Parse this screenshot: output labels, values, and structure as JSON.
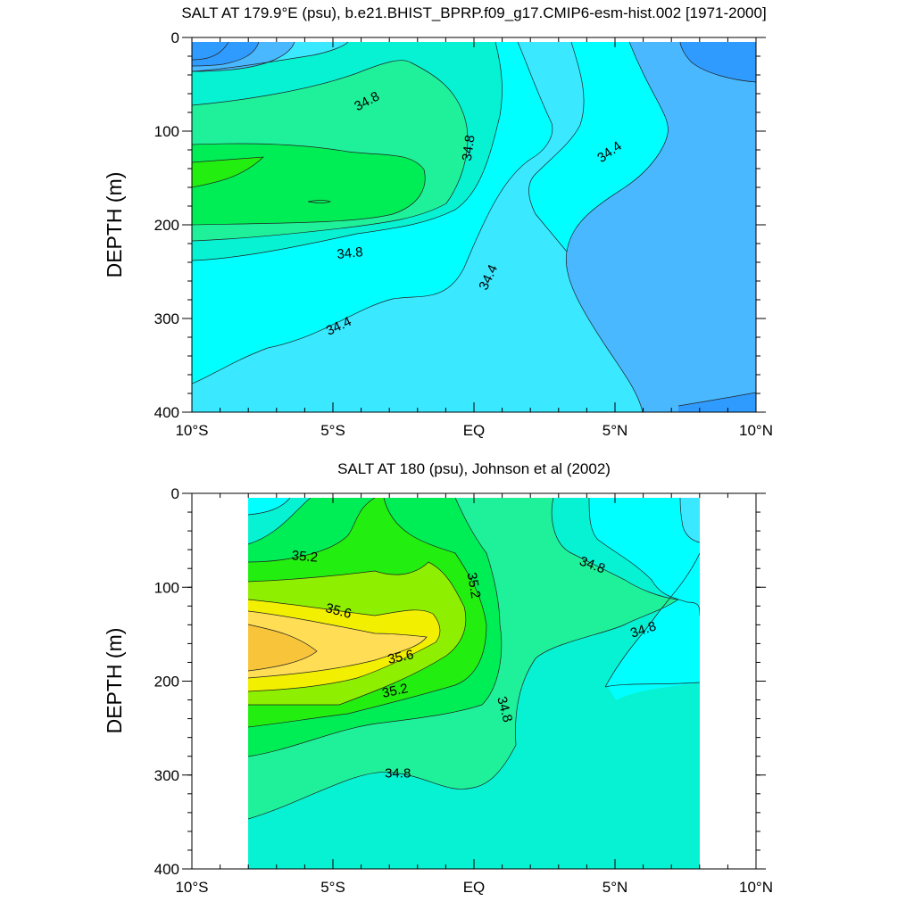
{
  "colors": {
    "s34_0": "#2f9bff",
    "s34_2": "#49b8ff",
    "s34_4": "#3ae8ff",
    "s34_6": "#00ffff",
    "s34_8": "#07f2d2",
    "s35_0": "#1ff19a",
    "s35_2": "#00ee55",
    "s35_4": "#22ee10",
    "s35_6": "#8ef000",
    "s35_8": "#f2f000",
    "s36_0": "#ffdd55",
    "s36_2": "#f8c43a",
    "line": "#222222",
    "axis": "#000000"
  },
  "chart_data": [
    {
      "type": "contour",
      "title": "SALT AT 179.9°E (psu), b.e21.BHIST_BPRP.f09_g17.CMIP6-esm-hist.002 [1971-2000]",
      "ylabel": "DEPTH (m)",
      "xlim": [
        -10,
        10
      ],
      "ylim": [
        400,
        0
      ],
      "x_ticks": [
        {
          "value": -10,
          "label": "10°S"
        },
        {
          "value": -5,
          "label": "5°S"
        },
        {
          "value": 0,
          "label": "EQ"
        },
        {
          "value": 5,
          "label": "5°N"
        },
        {
          "value": 10,
          "label": "10°N"
        }
      ],
      "y_ticks": [
        0,
        100,
        200,
        300,
        400
      ],
      "contour_labels": [
        {
          "text": "34.8",
          "lat": -3.8,
          "depth": 68,
          "angle": -28
        },
        {
          "text": "34.8",
          "lat": -0.2,
          "depth": 118,
          "angle": -82
        },
        {
          "text": "34.4",
          "lat": 4.8,
          "depth": 122,
          "angle": -35
        },
        {
          "text": "34.8",
          "lat": -4.4,
          "depth": 230,
          "angle": -6
        },
        {
          "text": "34.4",
          "lat": 0.5,
          "depth": 256,
          "angle": -65
        },
        {
          "text": "34.4",
          "lat": -4.8,
          "depth": 308,
          "angle": -25
        }
      ]
    },
    {
      "type": "contour",
      "title": "SALT AT 180 (psu), Johnson et al (2002)",
      "ylabel": "DEPTH (m)",
      "xlim": [
        -10,
        10
      ],
      "ylim": [
        400,
        0
      ],
      "data_x_range": [
        -8,
        8
      ],
      "x_ticks": [
        {
          "value": -10,
          "label": "10°S"
        },
        {
          "value": -5,
          "label": "5°S"
        },
        {
          "value": 0,
          "label": "EQ"
        },
        {
          "value": 5,
          "label": "5°N"
        },
        {
          "value": 10,
          "label": "10°N"
        }
      ],
      "y_ticks": [
        0,
        100,
        200,
        300,
        400
      ],
      "contour_labels": [
        {
          "text": "35.2",
          "lat": -6.0,
          "depth": 67,
          "angle": 5
        },
        {
          "text": "35.2",
          "lat": 0.0,
          "depth": 98,
          "angle": 80
        },
        {
          "text": "34.8",
          "lat": 4.2,
          "depth": 76,
          "angle": 20
        },
        {
          "text": "35.6",
          "lat": -4.8,
          "depth": 125,
          "angle": 15
        },
        {
          "text": "34.8",
          "lat": 6.0,
          "depth": 145,
          "angle": -18
        },
        {
          "text": "35.6",
          "lat": -2.6,
          "depth": 174,
          "angle": -12
        },
        {
          "text": "35.2",
          "lat": -2.8,
          "depth": 210,
          "angle": -12
        },
        {
          "text": "34.8",
          "lat": 1.1,
          "depth": 230,
          "angle": 75
        },
        {
          "text": "34.8",
          "lat": -2.7,
          "depth": 298,
          "angle": 0
        }
      ]
    }
  ]
}
